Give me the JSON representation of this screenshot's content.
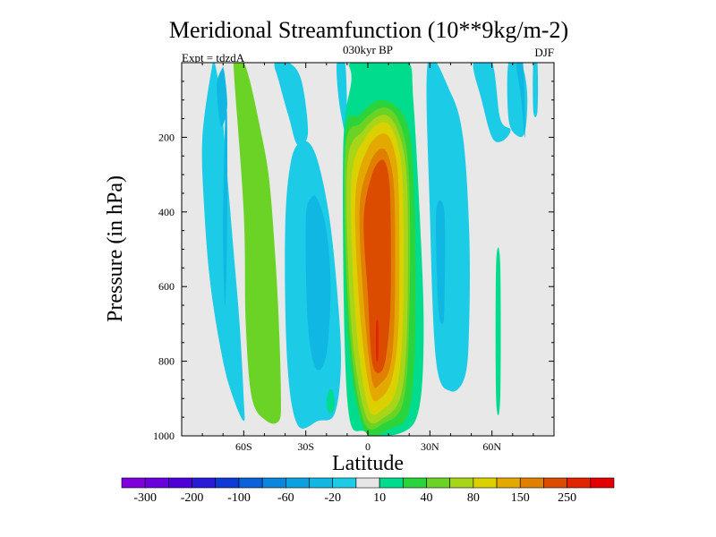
{
  "chart_data": {
    "type": "heatmap",
    "title": "Meridional Streamfunction (10**9kg/m-2)",
    "subtitle": "030kyr BP",
    "left_annotation": "Expt = tdzdA",
    "right_annotation": "DJF",
    "xlabel": "Latitude",
    "ylabel": "Pressure (in hPa)",
    "xlim": [
      -90,
      90
    ],
    "ylim": [
      1000,
      0
    ],
    "x_ticks": [
      {
        "value": -60,
        "label": "60S"
      },
      {
        "value": -30,
        "label": "30S"
      },
      {
        "value": 0,
        "label": "0"
      },
      {
        "value": 30,
        "label": "30N"
      },
      {
        "value": 60,
        "label": "60N"
      }
    ],
    "y_ticks": [
      {
        "value": 200,
        "label": "200"
      },
      {
        "value": 400,
        "label": "400"
      },
      {
        "value": 600,
        "label": "600"
      },
      {
        "value": 800,
        "label": "800"
      },
      {
        "value": 1000,
        "label": "1000"
      }
    ],
    "background_color": "#e8e8e8",
    "colorbar": {
      "colors": [
        "#7f00db",
        "#6a00dd",
        "#4d00d8",
        "#2a1bd6",
        "#0e3bd6",
        "#0a61da",
        "#0b86dd",
        "#0ba1e0",
        "#10b7e2",
        "#1ccbe6",
        "#e6e6e6",
        "#00dc8e",
        "#2bd43a",
        "#6ad326",
        "#a9d518",
        "#dbd100",
        "#e4a900",
        "#e07f00",
        "#dc4c00",
        "#e02500",
        "#e20000"
      ],
      "labels": [
        "-300",
        "-200",
        "-100",
        "-60",
        "-20",
        "10",
        "40",
        "80",
        "150",
        "250"
      ],
      "label_after_box": [
        0,
        2,
        4,
        6,
        8,
        10,
        12,
        14,
        16,
        18
      ]
    },
    "contour_regions": [
      {
        "level": 9,
        "lat": [
          -75,
          -80,
          -79,
          -76,
          -70,
          -65,
          -60,
          -60,
          -62,
          -65,
          -68,
          -71,
          -74
        ],
        "p": [
          0,
          200,
          400,
          600,
          800,
          900,
          960,
          900,
          700,
          500,
          300,
          100,
          0
        ]
      },
      {
        "level": 8,
        "lat": [
          -70,
          -73,
          -71,
          -68,
          -69,
          -70
        ],
        "p": [
          10,
          60,
          170,
          120,
          40,
          10
        ]
      },
      {
        "level": 8,
        "lat": [
          -69,
          -70,
          -69,
          -68,
          -68
        ],
        "p": [
          150,
          450,
          650,
          450,
          150
        ]
      },
      {
        "level": 13,
        "lat": [
          -65,
          -60,
          -59,
          -56,
          -49,
          -43,
          -42,
          -43,
          -45,
          -48,
          -53,
          -57,
          -60,
          -63
        ],
        "p": [
          0,
          400,
          700,
          900,
          960,
          960,
          900,
          700,
          500,
          300,
          150,
          50,
          0,
          0
        ]
      },
      {
        "level": 9,
        "lat": [
          -45,
          -38,
          -32,
          -29,
          -34,
          -38,
          -43
        ],
        "p": [
          0,
          0,
          50,
          190,
          220,
          150,
          50
        ]
      },
      {
        "level": 9,
        "lat": [
          -40,
          -39,
          -34,
          -24,
          -16,
          -13,
          -15,
          -19,
          -25,
          -31,
          -37
        ],
        "p": [
          450,
          800,
          970,
          960,
          940,
          800,
          600,
          400,
          250,
          210,
          260
        ]
      },
      {
        "level": 8,
        "lat": [
          -30,
          -29,
          -25,
          -20,
          -18,
          -20,
          -24,
          -27
        ],
        "p": [
          420,
          700,
          820,
          780,
          600,
          450,
          370,
          360
        ]
      },
      {
        "level": 9,
        "lat": [
          -15,
          -11,
          -10,
          -11,
          -14
        ],
        "p": [
          0,
          0,
          170,
          190,
          100
        ]
      },
      {
        "level": 11,
        "lat": [
          -8,
          10,
          20,
          22,
          25,
          27,
          25,
          17,
          -1,
          -10,
          -12,
          -8
        ],
        "p": [
          0,
          0,
          0,
          100,
          400,
          700,
          920,
          990,
          990,
          900,
          250,
          50
        ]
      },
      {
        "level": 12,
        "lat": [
          -11,
          -4,
          7,
          18,
          22,
          23,
          20,
          11,
          -2,
          -10
        ],
        "p": [
          200,
          140,
          100,
          150,
          300,
          700,
          930,
          980,
          980,
          700
        ]
      },
      {
        "level": 13,
        "lat": [
          -11,
          -3,
          8,
          16,
          20,
          20,
          17,
          8,
          -2,
          -9
        ],
        "p": [
          240,
          160,
          120,
          170,
          320,
          700,
          910,
          965,
          960,
          700
        ]
      },
      {
        "level": 14,
        "lat": [
          -10,
          -2,
          8,
          15,
          19,
          19,
          16,
          8,
          -1,
          -8
        ],
        "p": [
          280,
          180,
          140,
          190,
          330,
          700,
          890,
          950,
          945,
          700
        ]
      },
      {
        "level": 15,
        "lat": [
          -8,
          -1,
          8,
          14,
          17,
          17,
          14,
          7,
          0,
          -6
        ],
        "p": [
          320,
          200,
          160,
          210,
          340,
          690,
          870,
          930,
          920,
          680
        ]
      },
      {
        "level": 16,
        "lat": [
          -6,
          0,
          8,
          13,
          15,
          15,
          12,
          6,
          1,
          -4
        ],
        "p": [
          360,
          230,
          190,
          240,
          360,
          680,
          840,
          900,
          880,
          660
        ]
      },
      {
        "level": 17,
        "lat": [
          -4,
          1,
          7,
          11,
          13,
          13,
          11,
          6,
          2,
          -2
        ],
        "p": [
          390,
          270,
          230,
          270,
          380,
          660,
          810,
          860,
          850,
          640
        ]
      },
      {
        "level": 18,
        "lat": [
          -2,
          2,
          7,
          10,
          11,
          11,
          9,
          6,
          2,
          0
        ],
        "p": [
          420,
          300,
          260,
          300,
          400,
          640,
          780,
          830,
          800,
          620
        ]
      },
      {
        "level": 19,
        "lat": [
          4,
          5,
          5,
          4
        ],
        "p": [
          700,
          700,
          790,
          790
        ]
      },
      {
        "level": 9,
        "lat": [
          29,
          40,
          46,
          49,
          49,
          47,
          40,
          33,
          30
        ],
        "p": [
          0,
          80,
          200,
          450,
          700,
          840,
          880,
          800,
          400
        ]
      },
      {
        "level": 8,
        "lat": [
          33,
          37,
          37,
          36,
          34
        ],
        "p": [
          400,
          400,
          650,
          700,
          650
        ]
      },
      {
        "level": 9,
        "lat": [
          51,
          60,
          64,
          69,
          65,
          60,
          55
        ],
        "p": [
          0,
          0,
          150,
          180,
          210,
          200,
          100
        ]
      },
      {
        "level": 9,
        "lat": [
          68,
          74,
          77,
          76,
          72,
          68
        ],
        "p": [
          0,
          0,
          80,
          185,
          195,
          150
        ]
      },
      {
        "level": 8,
        "lat": [
          72,
          75,
          76,
          74,
          72
        ],
        "p": [
          0,
          0,
          200,
          90,
          20
        ]
      },
      {
        "level": 9,
        "lat": [
          80,
          82,
          82,
          80
        ],
        "p": [
          0,
          0,
          130,
          130
        ]
      },
      {
        "level": 11,
        "lat": [
          62,
          64,
          64,
          62
        ],
        "p": [
          540,
          540,
          900,
          900
        ]
      },
      {
        "level": 11,
        "lat": [
          -19,
          -17,
          -16,
          -18,
          -20
        ],
        "p": [
          880,
          880,
          920,
          940,
          920
        ]
      }
    ]
  }
}
